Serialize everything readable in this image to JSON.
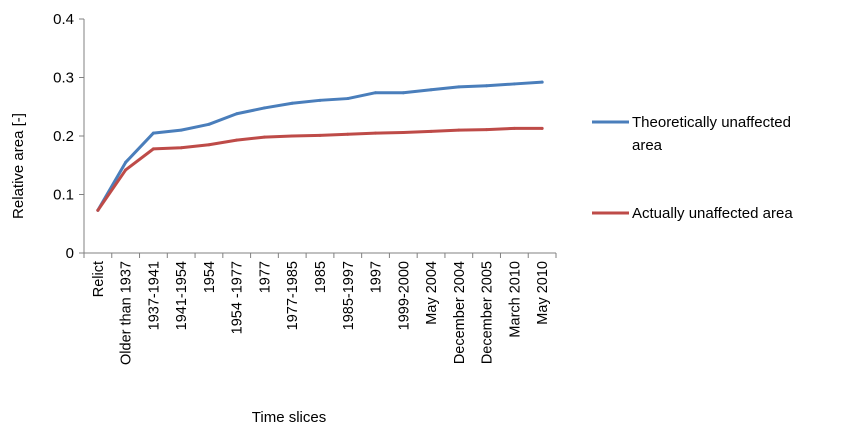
{
  "chart_data": {
    "type": "line",
    "title": "",
    "xlabel": "Time slices",
    "ylabel": "Relative  area [-]",
    "ylim": [
      0,
      0.4
    ],
    "yticks": [
      "0",
      "0.1",
      "0.2",
      "0.3",
      "0.4"
    ],
    "grid": false,
    "legend_position": "right",
    "categories": [
      "Relict",
      "Older than 1937",
      "1937-1941",
      "1941-1954",
      "1954",
      "1954 -1977",
      "1977",
      "1977-1985",
      "1985",
      "1985-1997",
      "1997",
      "1999-2000",
      "May 2004",
      "December 2004",
      "December 2005",
      "March 2010",
      "May 2010"
    ],
    "series": [
      {
        "name": "Theoretically unaffected area",
        "legend_lines": [
          "Theoretically unaffected",
          "area"
        ],
        "color": "#4a7ebb",
        "values": [
          0.073,
          0.155,
          0.205,
          0.21,
          0.22,
          0.238,
          0.248,
          0.256,
          0.261,
          0.264,
          0.274,
          0.274,
          0.279,
          0.284,
          0.286,
          0.289,
          0.292
        ]
      },
      {
        "name": "Actually unaffected area",
        "legend_lines": [
          "Actually unaffected area"
        ],
        "color": "#be4b48",
        "values": [
          0.073,
          0.142,
          0.178,
          0.18,
          0.185,
          0.193,
          0.198,
          0.2,
          0.201,
          0.203,
          0.205,
          0.206,
          0.208,
          0.21,
          0.211,
          0.213,
          0.213
        ]
      }
    ]
  }
}
